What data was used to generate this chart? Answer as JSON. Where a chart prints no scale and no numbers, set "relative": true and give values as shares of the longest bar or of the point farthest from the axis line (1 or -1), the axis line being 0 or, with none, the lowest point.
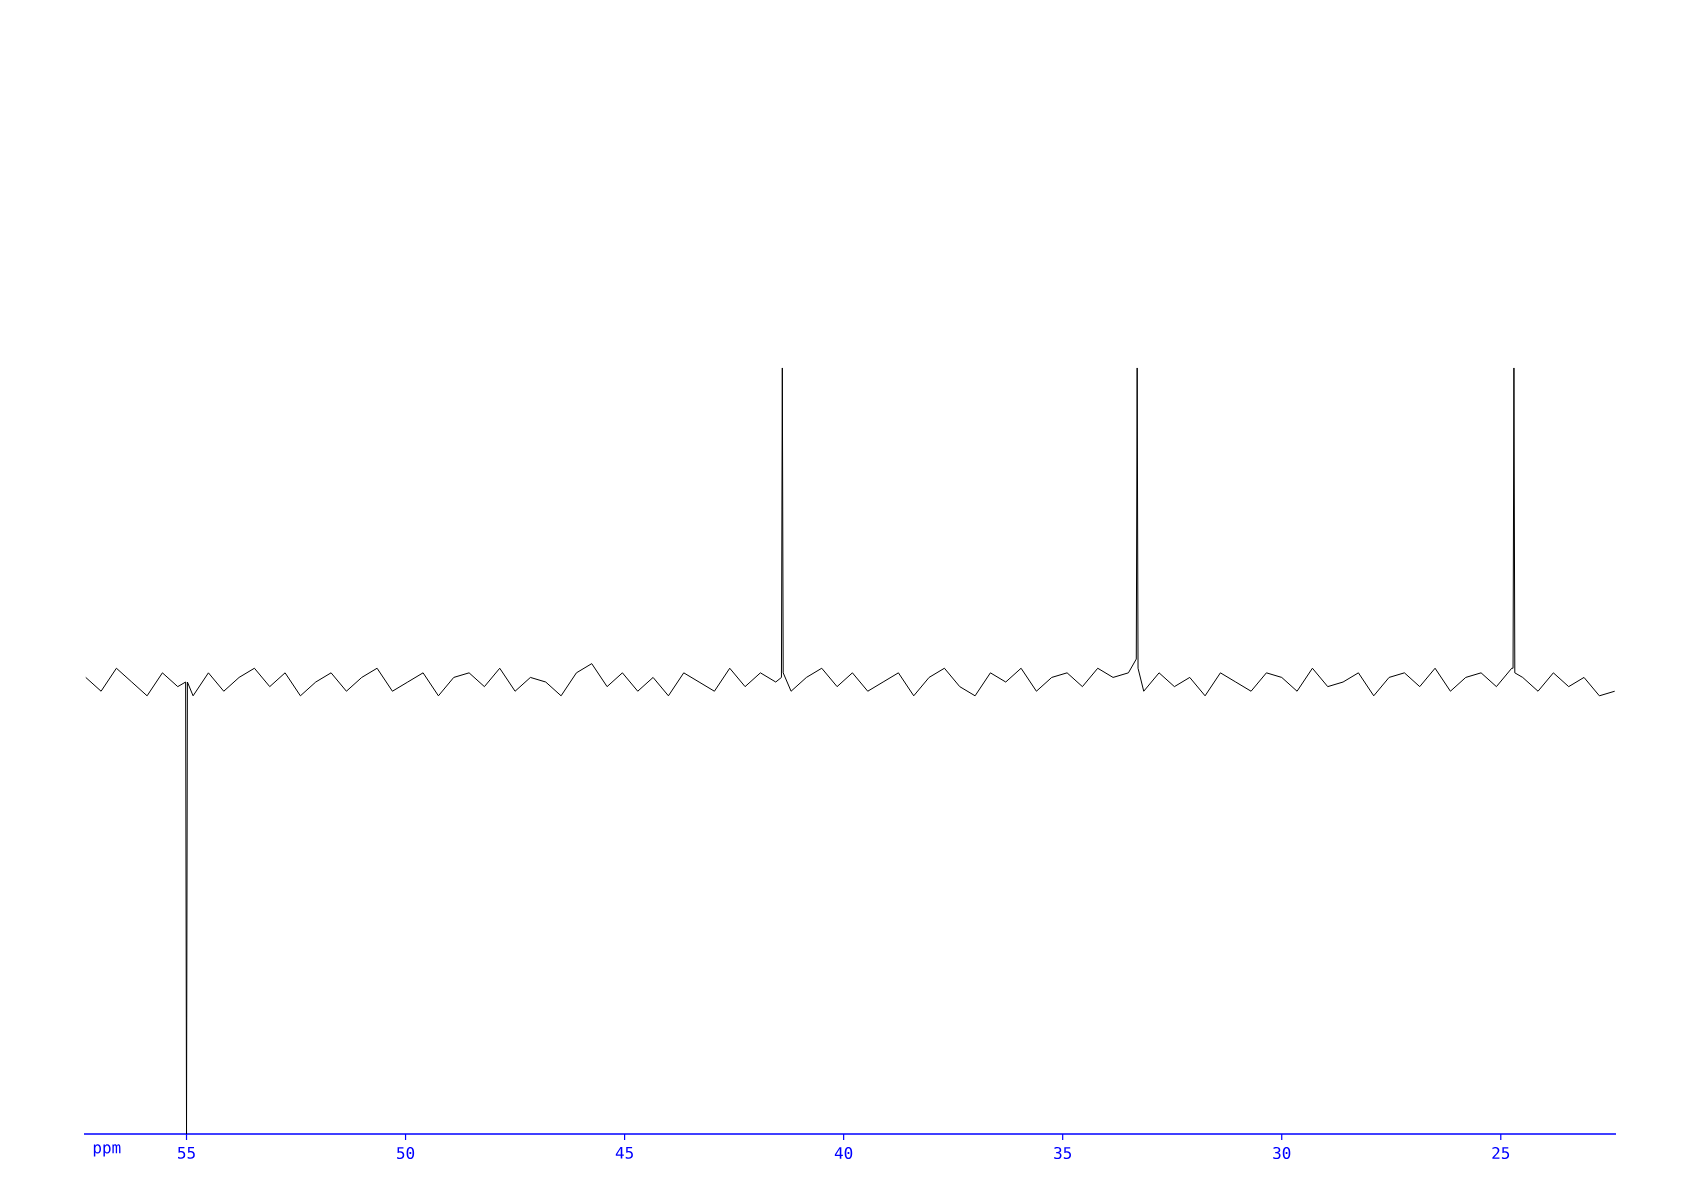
{
  "chart_data": {
    "type": "line",
    "relative": true,
    "xlabel": "ppm",
    "xlim": [
      57.34,
      22.37
    ],
    "xticks": [
      55,
      50,
      45,
      40,
      35,
      30,
      25
    ],
    "series": [
      {
        "color": "#000000",
        "x": [
          57.3,
          56.95,
          56.6,
          56.25,
          55.9,
          55.55,
          55.2,
          55.02,
          55.0,
          54.98,
          54.85,
          54.5,
          54.15,
          53.8,
          53.45,
          53.1,
          52.75,
          52.4,
          52.05,
          51.7,
          51.35,
          51.0,
          50.65,
          50.3,
          49.95,
          49.6,
          49.25,
          48.9,
          48.55,
          48.2,
          47.85,
          47.5,
          47.15,
          46.8,
          46.45,
          46.1,
          45.75,
          45.4,
          45.05,
          44.7,
          44.35,
          44.0,
          43.65,
          43.3,
          42.95,
          42.6,
          42.25,
          41.9,
          41.55,
          41.42,
          41.4,
          41.38,
          41.2,
          40.85,
          40.5,
          40.15,
          39.8,
          39.45,
          39.1,
          38.75,
          38.4,
          38.05,
          37.7,
          37.35,
          37.0,
          36.65,
          36.3,
          35.95,
          35.6,
          35.25,
          34.9,
          34.55,
          34.2,
          33.85,
          33.5,
          33.32,
          33.3,
          33.28,
          33.15,
          32.8,
          32.45,
          32.1,
          31.75,
          31.4,
          31.05,
          30.7,
          30.35,
          30.0,
          29.65,
          29.3,
          28.95,
          28.6,
          28.25,
          27.9,
          27.55,
          27.2,
          26.85,
          26.5,
          26.15,
          25.8,
          25.45,
          25.1,
          24.75,
          24.72,
          24.7,
          24.68,
          24.5,
          24.15,
          23.8,
          23.45,
          23.1,
          22.75,
          22.4
        ],
        "values": [
          0.596,
          0.578,
          0.608,
          0.59,
          0.572,
          0.602,
          0.584,
          0.59,
          0,
          0.59,
          0.572,
          0.602,
          0.578,
          0.596,
          0.608,
          0.584,
          0.602,
          0.572,
          0.59,
          0.602,
          0.578,
          0.596,
          0.608,
          0.578,
          0.59,
          0.602,
          0.572,
          0.596,
          0.602,
          0.584,
          0.608,
          0.578,
          0.596,
          0.59,
          0.572,
          0.602,
          0.614,
          0.584,
          0.602,
          0.578,
          0.596,
          0.572,
          0.602,
          0.59,
          0.578,
          0.608,
          0.584,
          0.602,
          0.59,
          0.596,
          1,
          0.602,
          0.578,
          0.596,
          0.608,
          0.584,
          0.602,
          0.578,
          0.59,
          0.602,
          0.572,
          0.596,
          0.608,
          0.584,
          0.572,
          0.602,
          0.59,
          0.608,
          0.578,
          0.596,
          0.602,
          0.584,
          0.608,
          0.596,
          0.602,
          0.62,
          1,
          0.608,
          0.578,
          0.602,
          0.584,
          0.596,
          0.572,
          0.602,
          0.59,
          0.578,
          0.602,
          0.596,
          0.578,
          0.608,
          0.584,
          0.59,
          0.602,
          0.572,
          0.596,
          0.602,
          0.584,
          0.608,
          0.578,
          0.596,
          0.602,
          0.584,
          0.608,
          0.608,
          1,
          0.602,
          0.596,
          0.578,
          0.602,
          0.584,
          0.596,
          0.572,
          0.578
        ]
      }
    ]
  }
}
